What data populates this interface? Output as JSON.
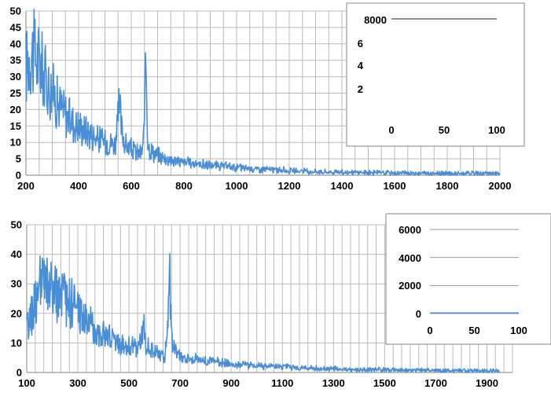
{
  "colors": {
    "series": "#4a8fd6",
    "grid": "#bcbcbc",
    "axis": "#9a9a9a"
  },
  "chart_data": [
    {
      "type": "line",
      "panel": "top",
      "title": "",
      "xlabel": "",
      "ylabel": "",
      "xlim": [
        200,
        2000
      ],
      "ylim": [
        0,
        50
      ],
      "x_ticks": [
        "200",
        "400",
        "600",
        "800",
        "1000",
        "1200",
        "1400",
        "1600",
        "1800",
        "2000"
      ],
      "y_ticks": [
        "0",
        "5",
        "10",
        "15",
        "20",
        "25",
        "30",
        "35",
        "40",
        "45",
        "50"
      ],
      "grid": true,
      "series": [
        {
          "x": [
            200,
            220,
            240,
            260,
            280,
            300,
            320,
            340,
            360,
            380,
            400,
            420,
            440,
            460,
            480,
            500,
            520,
            540,
            555,
            565,
            580,
            600,
            620,
            640,
            650,
            656,
            662,
            670,
            690,
            720,
            760,
            800,
            850,
            900,
            950,
            1000,
            1050,
            1100,
            1150,
            1200,
            1250,
            1300,
            1400,
            1500,
            1600,
            1700,
            1800,
            1900,
            2000
          ],
          "y": [
            33,
            38,
            36,
            33,
            28,
            26,
            22,
            20,
            18,
            16,
            15,
            14,
            13,
            12,
            11,
            10.5,
            10,
            9.5,
            21,
            13,
            9,
            8,
            7,
            6.5,
            14,
            38,
            12,
            8,
            6.5,
            5.5,
            4.5,
            4,
            3.5,
            3,
            2.7,
            2.4,
            2.1,
            1.8,
            1.6,
            1.4,
            1.2,
            1.1,
            0.9,
            0.8,
            0.7,
            0.6,
            0.55,
            0.5,
            0.5
          ]
        }
      ],
      "inset": {
        "type": "line",
        "ylim": [
          0,
          8000
        ],
        "x_ticks": [
          "0",
          "50",
          "100"
        ],
        "y_tick_labels": [
          "2",
          "4",
          "6",
          "8000"
        ],
        "series": [
          {
            "x": [
              0,
              100
            ],
            "y": [
              8000,
              8000
            ]
          }
        ]
      }
    },
    {
      "type": "line",
      "panel": "bottom",
      "title": "",
      "xlabel": "",
      "ylabel": "",
      "xlim": [
        100,
        2000
      ],
      "ylim": [
        0,
        50
      ],
      "x_ticks": [
        "100",
        "300",
        "500",
        "700",
        "900",
        "1100",
        "1300",
        "1500",
        "1700",
        "1900"
      ],
      "y_ticks": [
        "0",
        "10",
        "20",
        "30",
        "40",
        "50"
      ],
      "grid": true,
      "series": [
        {
          "x": [
            100,
            120,
            140,
            160,
            180,
            200,
            220,
            240,
            260,
            280,
            300,
            320,
            340,
            360,
            380,
            400,
            420,
            440,
            460,
            480,
            500,
            520,
            540,
            555,
            565,
            580,
            600,
            620,
            640,
            650,
            660,
            670,
            690,
            720,
            760,
            800,
            850,
            900,
            950,
            1000,
            1050,
            1100,
            1150,
            1200,
            1300,
            1400,
            1500,
            1600,
            1700,
            1800,
            1900,
            1950
          ],
          "y": [
            14,
            20,
            26,
            30,
            29,
            27,
            26,
            25,
            24,
            23,
            21,
            19,
            17,
            15,
            14,
            13,
            12,
            11,
            10,
            9.5,
            9,
            8.5,
            8,
            17,
            10,
            8,
            7,
            6,
            5.5,
            12,
            31,
            10,
            6,
            5,
            4.5,
            4,
            3.5,
            3,
            2.7,
            2.4,
            2.1,
            1.8,
            1.6,
            1.4,
            1.2,
            1,
            0.9,
            0.8,
            0.7,
            0.6,
            0.5,
            0.5
          ]
        }
      ],
      "inset": {
        "type": "line",
        "ylim": [
          0,
          6000
        ],
        "x_ticks": [
          "0",
          "50",
          "100"
        ],
        "y_tick_labels": [
          "0",
          "2000",
          "4000",
          "6000"
        ],
        "series": [
          {
            "x": [
              0,
              100
            ],
            "y": [
              40,
              40
            ]
          }
        ]
      }
    }
  ]
}
